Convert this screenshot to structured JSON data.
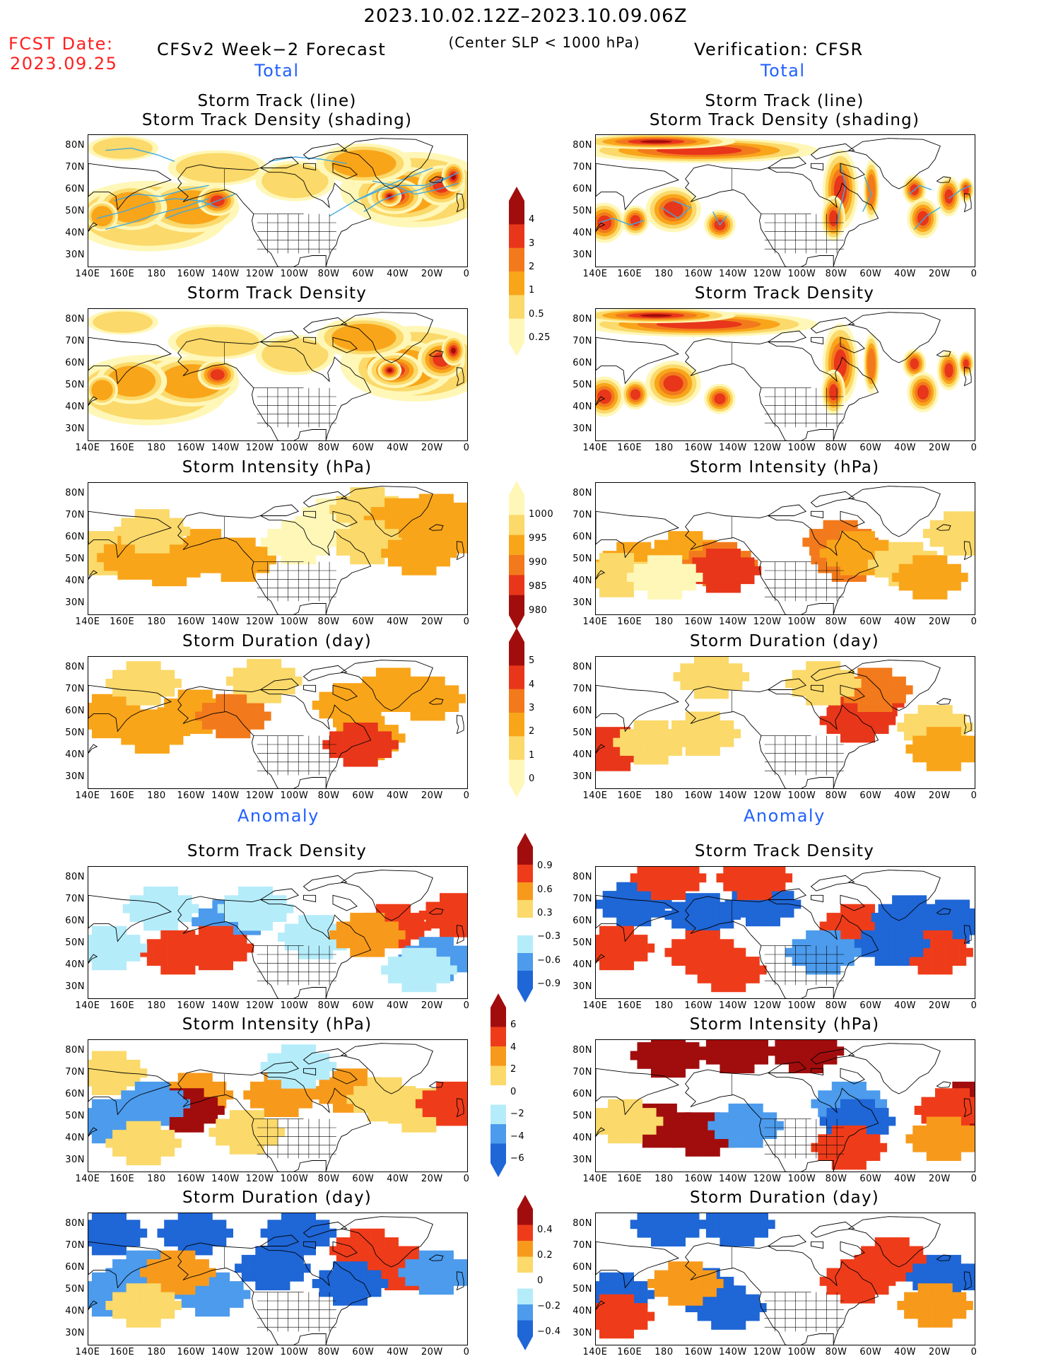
{
  "header": {
    "date_range": "2023.10.02.12Z–2023.10.09.06Z",
    "condition": "(Center SLP < 1000 hPa)",
    "fcst_label": "FCST Date:",
    "fcst_date": "2023.09.25",
    "left_title": "CFSv2 Week−2 Forecast",
    "right_title": "Verification: CFSR",
    "total_label": "Total",
    "anomaly_label": "Anomaly"
  },
  "panel_titles": {
    "track_line": "Storm Track (line)",
    "track_shading": "Storm Track Density (shading)",
    "density": "Storm Track Density",
    "intensity": "Storm Intensity (hPa)",
    "duration": "Storm Duration (day)"
  },
  "axes": {
    "lon_labels": [
      "140E",
      "160E",
      "180",
      "160W",
      "140W",
      "120W",
      "100W",
      "80W",
      "60W",
      "40W",
      "20W",
      "0"
    ],
    "lat_labels": [
      "80N",
      "70N",
      "60N",
      "50N",
      "40N",
      "30N"
    ]
  },
  "colorbars": {
    "density_total": [
      "4",
      "3",
      "2",
      "1",
      "0.5",
      "0.25"
    ],
    "intensity_total": [
      "1000",
      "995",
      "990",
      "985",
      "980"
    ],
    "duration_total": [
      "5",
      "4",
      "3",
      "2",
      "1",
      "0"
    ],
    "density_anom": [
      "0.9",
      "0.6",
      "0.3",
      "−0.3",
      "−0.6",
      "−0.9"
    ],
    "intensity_anom": [
      "6",
      "4",
      "2",
      "0",
      "−2",
      "−4",
      "−6"
    ],
    "duration_anom": [
      "0.4",
      "0.2",
      "0",
      "−0.2",
      "−0.4"
    ]
  },
  "colors": {
    "total_scale": [
      "#fff7b8",
      "#fbd96a",
      "#f9a51a",
      "#f27a1c",
      "#e8361a",
      "#a10d0d"
    ],
    "anom_scale": [
      "#1f66d6",
      "#4c9bec",
      "#b5ecfa",
      "#ffffff",
      "#fbd96a",
      "#f79a1c",
      "#ee3c1a",
      "#a10d0d"
    ],
    "track_line": "#3fa9e0",
    "date_red": "#ff2020",
    "label_blue": "#2060ff"
  }
}
